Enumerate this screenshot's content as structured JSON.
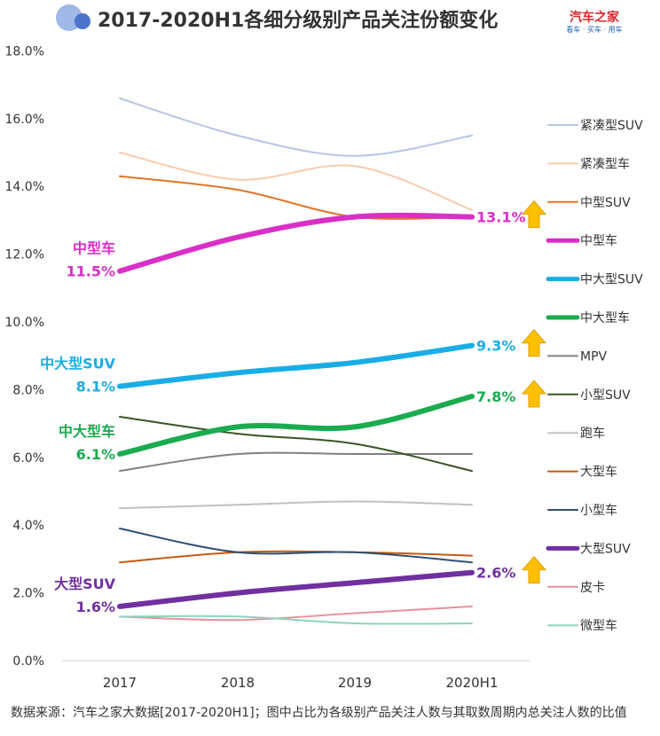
{
  "header": {
    "title": "2017-2020H1各细分级别产品关注份额变化",
    "brand_name": "汽车之家",
    "brand_tagline": "看车 · 买车 · 用车"
  },
  "footer": {
    "note": "数据来源：汽车之家大数据[2017-2020H1]；图中占比为各级别产品关注人数与其取数周期内总关注人数的比值"
  },
  "colors": {
    "title_circle_light": "#9fb8e6",
    "title_circle_dark": "#4a74c9",
    "brand_red": "#d8262c",
    "brand_blue": "#1f5fae",
    "arrow_fill": "#ffc000",
    "arrow_stroke": "#e0a000"
  },
  "chart_data": {
    "type": "line",
    "categories": [
      "2017",
      "2018",
      "2019",
      "2020H1"
    ],
    "ylim": [
      0,
      18
    ],
    "yticks": [
      0,
      2,
      4,
      6,
      8,
      10,
      12,
      14,
      16,
      18
    ],
    "ytick_labels": [
      "0.0%",
      "2.0%",
      "4.0%",
      "6.0%",
      "8.0%",
      "10.0%",
      "12.0%",
      "14.0%",
      "16.0%",
      "18.0%"
    ],
    "legend_position": "right",
    "series": [
      {
        "name": "紧凑型SUV",
        "color": "#b4c7e7",
        "width": 2,
        "values": [
          16.6,
          15.5,
          14.9,
          15.5
        ]
      },
      {
        "name": "紧凑型车",
        "color": "#f8cbad",
        "width": 2,
        "values": [
          15.0,
          14.2,
          14.6,
          13.3
        ]
      },
      {
        "name": "中型SUV",
        "color": "#e07427",
        "width": 2,
        "values": [
          14.3,
          13.9,
          13.1,
          13.1
        ]
      },
      {
        "name": "中型车",
        "color": "#d92fc7",
        "width": 6,
        "values": [
          11.5,
          12.5,
          13.1,
          13.1
        ],
        "start_name": "中型车",
        "start_label": "11.5%",
        "end_label": "13.1%",
        "arrow": true
      },
      {
        "name": "中大型SUV",
        "color": "#18ade6",
        "width": 6,
        "values": [
          8.1,
          8.5,
          8.8,
          9.3
        ],
        "start_name": "中大型SUV",
        "start_label": "8.1%",
        "end_label": "9.3%",
        "arrow": true
      },
      {
        "name": "中大型车",
        "color": "#1aab4f",
        "width": 6,
        "values": [
          6.1,
          6.9,
          6.9,
          7.8
        ],
        "start_name": "中大型车",
        "start_label": "6.1%",
        "end_label": "7.8%",
        "arrow": true
      },
      {
        "name": "MPV",
        "color": "#808080",
        "width": 2,
        "values": [
          5.6,
          6.1,
          6.1,
          6.1
        ]
      },
      {
        "name": "小型SUV",
        "color": "#375623",
        "width": 2,
        "values": [
          7.2,
          6.7,
          6.4,
          5.6
        ]
      },
      {
        "name": "跑车",
        "color": "#c0c0c0",
        "width": 2,
        "values": [
          4.5,
          4.6,
          4.7,
          4.6
        ]
      },
      {
        "name": "大型车",
        "color": "#c55a11",
        "width": 2,
        "values": [
          2.9,
          3.2,
          3.2,
          3.1
        ]
      },
      {
        "name": "小型车",
        "color": "#2e4f73",
        "width": 2,
        "values": [
          3.9,
          3.2,
          3.2,
          2.9
        ]
      },
      {
        "name": "大型SUV",
        "color": "#7030a0",
        "width": 6,
        "values": [
          1.6,
          2.0,
          2.3,
          2.6
        ],
        "start_name": "大型SUV",
        "start_label": "1.6%",
        "end_label": "2.6%",
        "arrow": true
      },
      {
        "name": "皮卡",
        "color": "#e6919a",
        "width": 2,
        "values": [
          1.3,
          1.2,
          1.4,
          1.6
        ]
      },
      {
        "name": "微型车",
        "color": "#8fd3bf",
        "width": 2,
        "values": [
          1.3,
          1.3,
          1.1,
          1.1
        ]
      }
    ]
  }
}
